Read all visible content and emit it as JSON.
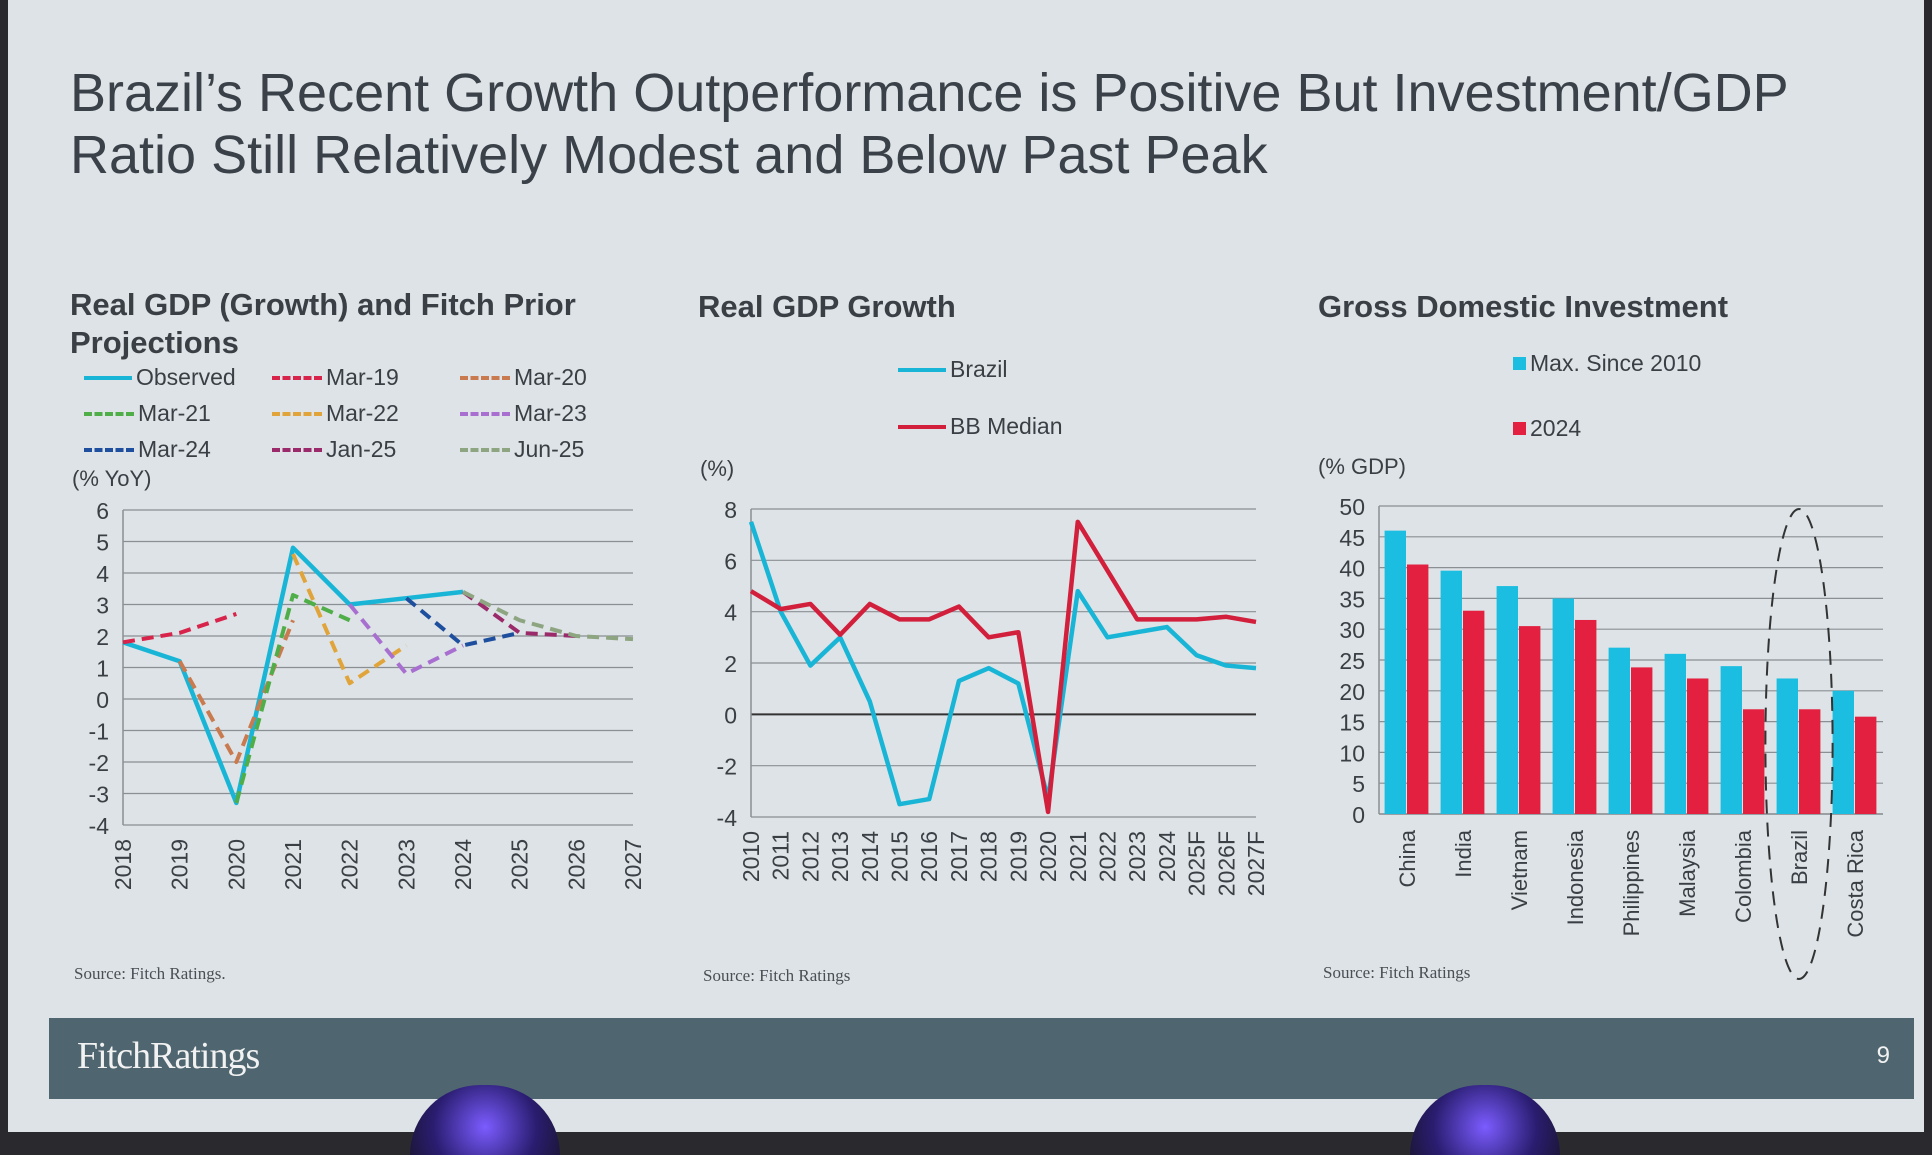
{
  "title": "Brazil’s Recent Growth Outperformance is Positive But Investment/GDP\nRatio Still Relatively Modest and Below Past Peak",
  "footer": {
    "logo": "FitchRatings",
    "page": "9"
  },
  "chart_data": [
    {
      "type": "line",
      "title": "Real GDP (Growth) and Fitch Prior Projections",
      "ylabel": "(% YoY)",
      "source": "Source: Fitch Ratings.",
      "x": [
        "2018",
        "2019",
        "2020",
        "2021",
        "2022",
        "2023",
        "2024",
        "2025",
        "2026",
        "2027"
      ],
      "ylim": [
        -4,
        6
      ],
      "yticks": [
        6,
        5,
        4,
        3,
        2,
        1,
        0,
        -1,
        -2,
        -3,
        -4
      ],
      "series": [
        {
          "name": "Observed",
          "color": "#19b5d6",
          "dash": false,
          "values": [
            1.8,
            1.2,
            -3.3,
            4.8,
            3.0,
            3.2,
            3.4,
            null,
            null,
            null
          ]
        },
        {
          "name": "Mar-19",
          "color": "#d8234a",
          "dash": true,
          "values": [
            1.8,
            2.1,
            2.7,
            null,
            null,
            null,
            null,
            null,
            null,
            null
          ]
        },
        {
          "name": "Mar-20",
          "color": "#c97a4e",
          "dash": true,
          "values": [
            null,
            1.2,
            -2.0,
            2.5,
            null,
            null,
            null,
            null,
            null,
            null
          ]
        },
        {
          "name": "Mar-21",
          "color": "#4fae48",
          "dash": true,
          "values": [
            null,
            null,
            -3.3,
            3.3,
            2.5,
            null,
            null,
            null,
            null,
            null
          ]
        },
        {
          "name": "Mar-22",
          "color": "#e0a43a",
          "dash": true,
          "values": [
            null,
            null,
            null,
            4.6,
            0.5,
            1.7,
            null,
            null,
            null,
            null
          ]
        },
        {
          "name": "Mar-23",
          "color": "#a86fd0",
          "dash": true,
          "values": [
            null,
            null,
            null,
            null,
            3.0,
            0.8,
            1.7,
            null,
            null,
            null
          ]
        },
        {
          "name": "Mar-24",
          "color": "#1e4f9e",
          "dash": true,
          "values": [
            null,
            null,
            null,
            null,
            null,
            3.2,
            1.7,
            2.1,
            null,
            null
          ]
        },
        {
          "name": "Jan-25",
          "color": "#9a2a6a",
          "dash": true,
          "values": [
            null,
            null,
            null,
            null,
            null,
            null,
            3.4,
            2.1,
            2.0,
            null
          ]
        },
        {
          "name": "Jun-25",
          "color": "#8ea582",
          "dash": true,
          "values": [
            null,
            null,
            null,
            null,
            null,
            null,
            3.4,
            2.5,
            2.0,
            1.9
          ]
        }
      ]
    },
    {
      "type": "line",
      "title": "Real GDP Growth",
      "ylabel": "(%)",
      "source": "Source: Fitch Ratings",
      "x": [
        "2010",
        "2011",
        "2012",
        "2013",
        "2014",
        "2015",
        "2016",
        "2017",
        "2018",
        "2019",
        "2020",
        "2021",
        "2022",
        "2023",
        "2024",
        "2025F",
        "2026F",
        "2027F"
      ],
      "ylim": [
        -4,
        8
      ],
      "yticks": [
        8,
        6,
        4,
        2,
        0,
        -2,
        -4
      ],
      "series": [
        {
          "name": "Brazil",
          "color": "#19b5d6",
          "values": [
            7.5,
            4.0,
            1.9,
            3.0,
            0.5,
            -3.5,
            -3.3,
            1.3,
            1.8,
            1.2,
            -3.3,
            4.8,
            3.0,
            3.2,
            3.4,
            2.3,
            1.9,
            1.8
          ]
        },
        {
          "name": "BB Median",
          "color": "#d21f3c",
          "values": [
            4.8,
            4.1,
            4.3,
            3.1,
            4.3,
            3.7,
            3.7,
            4.2,
            3.0,
            3.2,
            -3.8,
            7.5,
            5.6,
            3.7,
            3.7,
            3.7,
            3.8,
            3.6
          ]
        }
      ]
    },
    {
      "type": "bar",
      "title": "Gross Domestic Investment",
      "ylabel": "(% GDP)",
      "source": "Source: Fitch Ratings",
      "categories": [
        "China",
        "India",
        "Vietnam",
        "Indonesia",
        "Philippines",
        "Malaysia",
        "Colombia",
        "Brazil",
        "Costa Rica"
      ],
      "ylim": [
        0,
        50
      ],
      "yticks": [
        50,
        45,
        40,
        35,
        30,
        25,
        20,
        15,
        10,
        5,
        0
      ],
      "highlight": "Brazil",
      "series": [
        {
          "name": "Max. Since 2010",
          "color": "#1bbde0",
          "values": [
            46,
            39.5,
            37,
            35,
            27,
            26,
            24,
            22,
            20
          ]
        },
        {
          "name": "2024",
          "color": "#e3203f",
          "values": [
            40.5,
            33,
            30.5,
            31.5,
            23.8,
            22,
            17,
            17,
            15.8
          ]
        }
      ]
    }
  ]
}
